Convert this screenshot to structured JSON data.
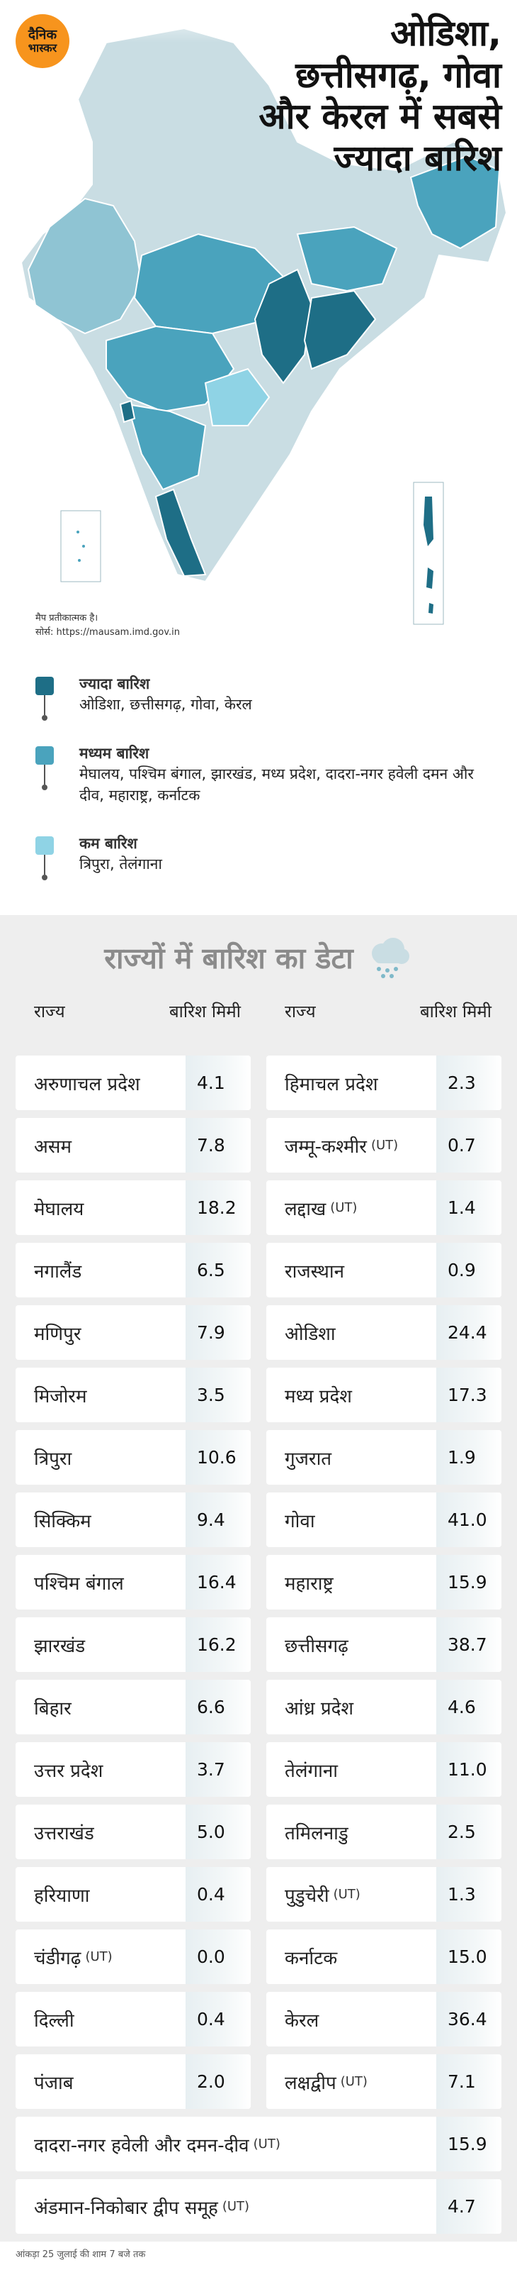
{
  "logo": {
    "line1": "दैनिक",
    "line2": "भास्कर"
  },
  "headline": {
    "line1": "ओडिशा,",
    "line2": "छत्तीसगढ़, गोवा",
    "line3": "और केरल में सबसे",
    "line4": "ज्यादा बारिश"
  },
  "map_note": {
    "disclaimer": "मैप प्रतीकात्मक है।",
    "source": "सोर्स: https://mausam.imd.gov.in"
  },
  "colors": {
    "high": "#1e6e86",
    "medium": "#4aa3bd",
    "low": "#8fd3e5",
    "base": "#c9dde3"
  },
  "legend": [
    {
      "title": "ज्यादा बारिश",
      "states": "ओडिशा, छत्तीसगढ़, गोवा, केरल",
      "color": "#1e6e86"
    },
    {
      "title": "मध्यम बारिश",
      "states": "मेघालय, पश्चिम बंगाल, झारखंड, मध्य प्रदेश, दादरा-नगर हवेली दमन और दीव, महाराष्ट्र, कर्नाटक",
      "color": "#4aa3bd"
    },
    {
      "title": "कम बारिश",
      "states": "त्रिपुरा, तेलंगाना",
      "color": "#8fd3e5"
    }
  ],
  "table": {
    "title": "राज्यों में बारिश का डेटा",
    "icon": "rain-cloud-icon",
    "col_state": "राज्य",
    "col_rain": "बारिश मिमी",
    "left": [
      {
        "state": "अरुणाचल प्रदेश",
        "ut": "",
        "value": "4.1"
      },
      {
        "state": "असम",
        "ut": "",
        "value": "7.8"
      },
      {
        "state": "मेघालय",
        "ut": "",
        "value": "18.2"
      },
      {
        "state": "नगालैंड",
        "ut": "",
        "value": "6.5"
      },
      {
        "state": "मणिपुर",
        "ut": "",
        "value": "7.9"
      },
      {
        "state": "मिजोरम",
        "ut": "",
        "value": "3.5"
      },
      {
        "state": "त्रिपुरा",
        "ut": "",
        "value": "10.6"
      },
      {
        "state": "सिक्किम",
        "ut": "",
        "value": "9.4"
      },
      {
        "state": "पश्चिम बंगाल",
        "ut": "",
        "value": "16.4"
      },
      {
        "state": "झारखंड",
        "ut": "",
        "value": "16.2"
      },
      {
        "state": "बिहार",
        "ut": "",
        "value": "6.6"
      },
      {
        "state": "उत्तर प्रदेश",
        "ut": "",
        "value": "3.7"
      },
      {
        "state": "उत्तराखंड",
        "ut": "",
        "value": "5.0"
      },
      {
        "state": "हरियाणा",
        "ut": "",
        "value": "0.4"
      },
      {
        "state": "चंडीगढ़",
        "ut": "(UT)",
        "value": "0.0"
      },
      {
        "state": "दिल्ली",
        "ut": "",
        "value": "0.4"
      },
      {
        "state": "पंजाब",
        "ut": "",
        "value": "2.0"
      }
    ],
    "right": [
      {
        "state": "हिमाचल प्रदेश",
        "ut": "",
        "value": "2.3"
      },
      {
        "state": "जम्मू-कश्मीर",
        "ut": "(UT)",
        "value": "0.7"
      },
      {
        "state": "लद्दाख",
        "ut": "(UT)",
        "value": "1.4"
      },
      {
        "state": "राजस्थान",
        "ut": "",
        "value": "0.9"
      },
      {
        "state": "ओडिशा",
        "ut": "",
        "value": "24.4"
      },
      {
        "state": "मध्य प्रदेश",
        "ut": "",
        "value": "17.3"
      },
      {
        "state": "गुजरात",
        "ut": "",
        "value": "1.9"
      },
      {
        "state": "गोवा",
        "ut": "",
        "value": "41.0"
      },
      {
        "state": "महाराष्ट्र",
        "ut": "",
        "value": "15.9"
      },
      {
        "state": "छत्तीसगढ़",
        "ut": "",
        "value": "38.7"
      },
      {
        "state": "आंध्र प्रदेश",
        "ut": "",
        "value": "4.6"
      },
      {
        "state": "तेलंगाना",
        "ut": "",
        "value": "11.0"
      },
      {
        "state": "तमिलनाडु",
        "ut": "",
        "value": "2.5"
      },
      {
        "state": "पुडुचेरी",
        "ut": "(UT)",
        "value": "1.3"
      },
      {
        "state": "कर्नाटक",
        "ut": "",
        "value": "15.0"
      },
      {
        "state": "केरल",
        "ut": "",
        "value": "36.4"
      },
      {
        "state": "लक्षद्वीप",
        "ut": "(UT)",
        "value": "7.1"
      }
    ],
    "full": [
      {
        "state": "दादरा-नगर हवेली और दमन-दीव",
        "ut": "(UT)",
        "value": "15.9"
      },
      {
        "state": "अंडमान-निकोबार द्वीप समूह",
        "ut": "(UT)",
        "value": "4.7"
      }
    ]
  },
  "footnote": "आंकड़ा 25 जुलाई की शाम 7 बजे तक"
}
